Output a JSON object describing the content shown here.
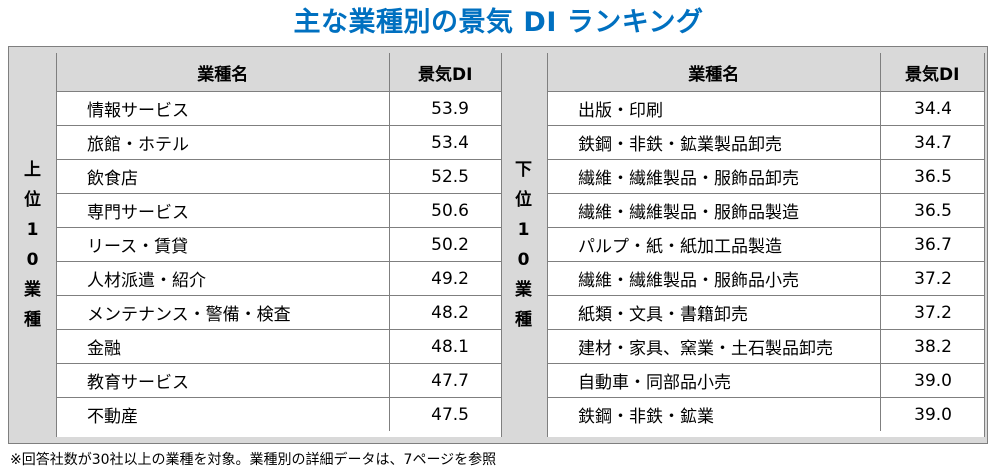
{
  "title": "主な業種別の景気 DI ランキング",
  "left": {
    "side_label": [
      "上",
      "位",
      "1",
      "0",
      "業",
      "種"
    ],
    "header_name": "業種名",
    "header_value": "景気DI",
    "rows": [
      {
        "name": "情報サービス",
        "value": "53.9"
      },
      {
        "name": "旅館・ホテル",
        "value": "53.4"
      },
      {
        "name": "飲食店",
        "value": "52.5"
      },
      {
        "name": "専門サービス",
        "value": "50.6"
      },
      {
        "name": "リース・賃貸",
        "value": "50.2"
      },
      {
        "name": "人材派遣・紹介",
        "value": "49.2"
      },
      {
        "name": "メンテナンス・警備・検査",
        "value": "48.2"
      },
      {
        "name": "金融",
        "value": "48.1"
      },
      {
        "name": "教育サービス",
        "value": "47.7"
      },
      {
        "name": "不動産",
        "value": "47.5"
      }
    ]
  },
  "right": {
    "side_label": [
      "下",
      "位",
      "1",
      "0",
      "業",
      "種"
    ],
    "header_name": "業種名",
    "header_value": "景気DI",
    "rows": [
      {
        "name": "出版・印刷",
        "value": "34.4"
      },
      {
        "name": "鉄鋼・非鉄・鉱業製品卸売",
        "value": "34.7"
      },
      {
        "name": "繊維・繊維製品・服飾品卸売",
        "value": "36.5"
      },
      {
        "name": "繊維・繊維製品・服飾品製造",
        "value": "36.5"
      },
      {
        "name": "パルプ・紙・紙加工品製造",
        "value": "36.7"
      },
      {
        "name": "繊維・繊維製品・服飾品小売",
        "value": "37.2"
      },
      {
        "name": "紙類・文具・書籍卸売",
        "value": "37.2"
      },
      {
        "name": "建材・家具、窯業・土石製品卸売",
        "value": "38.2"
      },
      {
        "name": "自動車・同部品小売",
        "value": "39.0"
      },
      {
        "name": "鉄鋼・非鉄・鉱業",
        "value": "39.0"
      }
    ]
  },
  "footnote": "※回答社数が30社以上の業種を対象。業種別の詳細データは、7ページを参照"
}
